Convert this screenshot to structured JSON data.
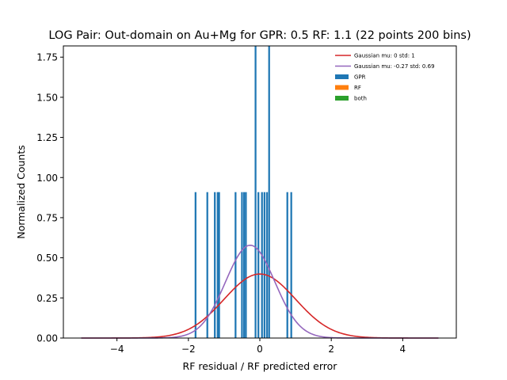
{
  "chart_data": {
    "type": "bar",
    "title": "LOG Pair: Out-domain on Au+Mg for GPR: 0.5 RF: 1.1 (22 points 200 bins)",
    "xlabel": "RF residual / RF predicted error",
    "ylabel": "Normalized Counts",
    "xlim": [
      -5.5,
      5.5
    ],
    "ylim": [
      0,
      1.82
    ],
    "xticks": [
      -4,
      -2,
      0,
      2,
      4
    ],
    "xtick_labels": [
      "−4",
      "−2",
      "0",
      "2",
      "4"
    ],
    "yticks": [
      0.0,
      0.25,
      0.5,
      0.75,
      1.0,
      1.25,
      1.5,
      1.75
    ],
    "ytick_labels": [
      "0.00",
      "0.25",
      "0.50",
      "0.75",
      "1.00",
      "1.25",
      "1.50",
      "1.75"
    ],
    "grid": false,
    "legend_position": "top-right",
    "bin_width": 0.05,
    "histogram": {
      "name": "GPR",
      "color": "#1f77b4",
      "bins": [
        {
          "x": -1.8,
          "height": 0.909
        },
        {
          "x": -1.47,
          "height": 0.909
        },
        {
          "x": -1.26,
          "height": 0.909
        },
        {
          "x": -1.18,
          "height": 0.909
        },
        {
          "x": -1.14,
          "height": 0.909
        },
        {
          "x": -0.68,
          "height": 0.909
        },
        {
          "x": -0.5,
          "height": 0.909
        },
        {
          "x": -0.44,
          "height": 0.909
        },
        {
          "x": -0.39,
          "height": 0.909
        },
        {
          "x": -0.12,
          "height": 1.82
        },
        {
          "x": -0.04,
          "height": 0.909
        },
        {
          "x": 0.06,
          "height": 0.909
        },
        {
          "x": 0.13,
          "height": 0.909
        },
        {
          "x": 0.2,
          "height": 0.909
        },
        {
          "x": 0.26,
          "height": 1.82
        },
        {
          "x": 0.77,
          "height": 0.909
        },
        {
          "x": 0.88,
          "height": 0.909
        }
      ]
    },
    "series": [
      {
        "name": "Gaussian mu: 0 std: 1",
        "type": "line",
        "color": "#d62728",
        "mu": 0,
        "std": 1,
        "x_range": [
          -5,
          5
        ]
      },
      {
        "name": "Gaussian mu: -0.27 std: 0.69",
        "type": "line",
        "color": "#9467bd",
        "mu": -0.27,
        "std": 0.69,
        "x_range": [
          -5,
          5
        ]
      }
    ],
    "legend": [
      {
        "label": "Gaussian mu: 0 std: 1",
        "kind": "line",
        "color": "#d62728"
      },
      {
        "label": "Gaussian mu: -0.27 std: 0.69",
        "kind": "line",
        "color": "#9467bd"
      },
      {
        "label": "GPR",
        "kind": "patch",
        "color": "#1f77b4"
      },
      {
        "label": "RF",
        "kind": "patch",
        "color": "#ff7f0e"
      },
      {
        "label": "both",
        "kind": "patch",
        "color": "#2ca02c"
      }
    ]
  }
}
